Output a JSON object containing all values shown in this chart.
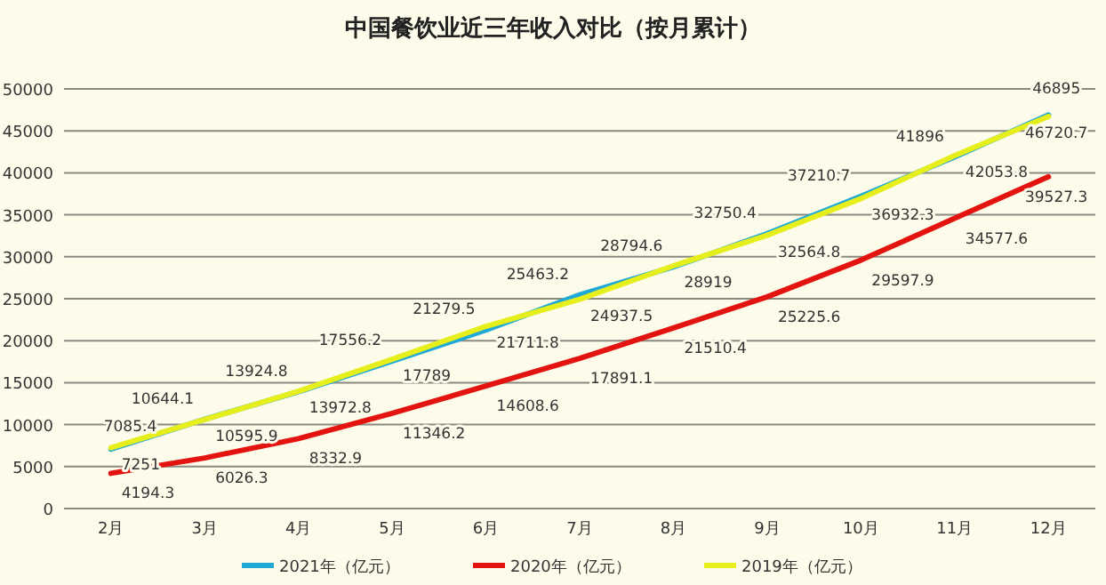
{
  "chart_data": {
    "type": "line",
    "title": "中国餐饮业近三年收入对比（按月累计）",
    "categories": [
      "2月",
      "3月",
      "4月",
      "5月",
      "6月",
      "7月",
      "8月",
      "9月",
      "10月",
      "11月",
      "12月"
    ],
    "series": [
      {
        "name": "2021年（亿元）",
        "color": "#1fa9d6",
        "values": [
          7085.4,
          10644.1,
          13924.8,
          17556.2,
          21279.5,
          25463.2,
          28794.6,
          32750.4,
          37210.7,
          41896,
          46895
        ]
      },
      {
        "name": "2020年（亿元）",
        "color": "#e3140f",
        "values": [
          4194.3,
          6026.3,
          8332.9,
          11346.2,
          14608.6,
          17891.1,
          21510.4,
          25225.6,
          29597.9,
          34577.6,
          39527.3
        ]
      },
      {
        "name": "2019年（亿元）",
        "color": "#e6ef1c",
        "values": [
          7251,
          10595.9,
          13972.8,
          17789,
          21711.8,
          24937.5,
          28919,
          32564.8,
          36932.3,
          42053.8,
          46720.7
        ]
      }
    ],
    "ylim": [
      0,
      50000
    ],
    "yticks": [
      0,
      5000,
      10000,
      15000,
      20000,
      25000,
      30000,
      35000,
      40000,
      45000,
      50000
    ],
    "grid": "y",
    "legend": "bottom",
    "data_labels": true,
    "marker": "none",
    "line_style": "solid"
  }
}
